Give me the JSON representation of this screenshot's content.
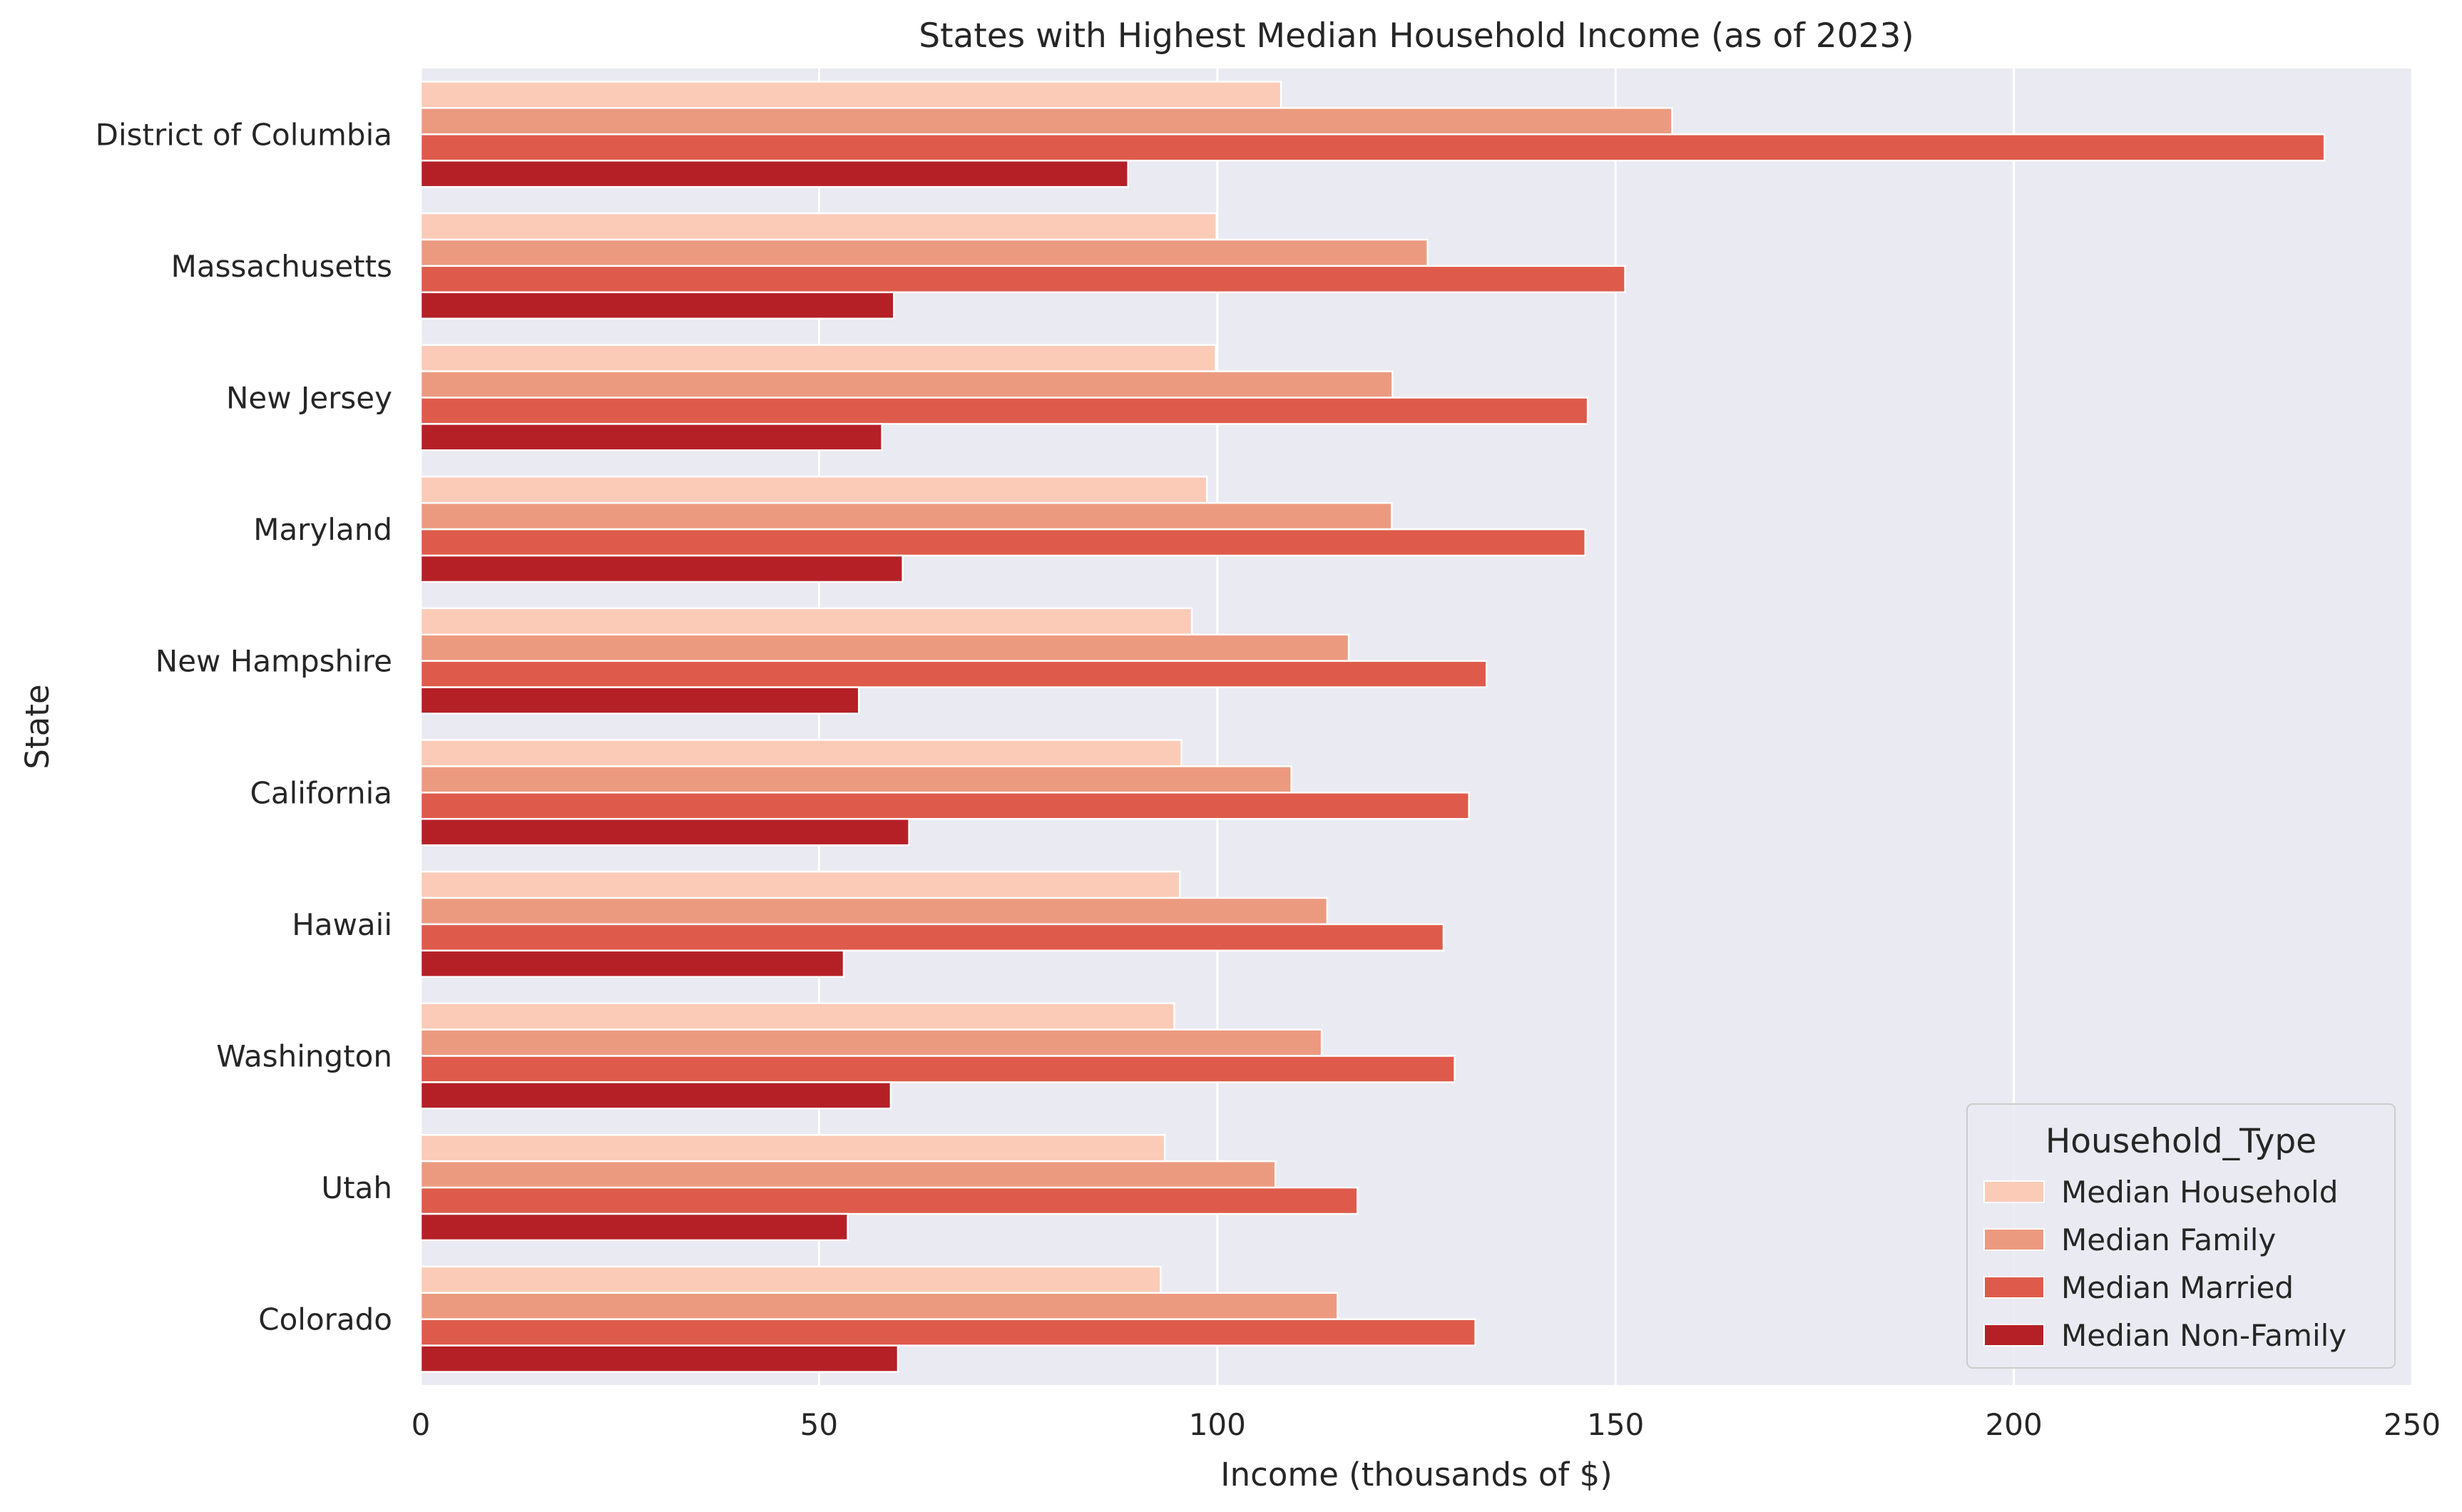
{
  "chart_data": {
    "type": "bar",
    "orientation": "horizontal",
    "title": "States with Highest Median Household Income (as of 2023)",
    "xlabel": "Income (thousands of $)",
    "ylabel": "State",
    "xlim": [
      0,
      250
    ],
    "xticks": [
      0,
      50,
      100,
      150,
      200,
      250
    ],
    "xtick_labels": [
      "0",
      "50",
      "100",
      "150",
      "200",
      "250"
    ],
    "grid": true,
    "legend": {
      "title": "Household_Type",
      "placement": "lower-right"
    },
    "categories": [
      "District of Columbia",
      "Massachusetts",
      "New Jersey",
      "Maryland",
      "New Hampshire",
      "California",
      "Hawaii",
      "Washington",
      "Utah",
      "Colorado"
    ],
    "series": [
      {
        "name": "Median Household",
        "color": "#fbcbb7",
        "values": [
          108,
          99.9,
          99.8,
          98.7,
          96.8,
          95.5,
          95.3,
          94.6,
          93.4,
          92.9
        ]
      },
      {
        "name": "Median Family",
        "color": "#ec9a7f",
        "values": [
          157.1,
          126.4,
          122,
          121.9,
          116.5,
          109.3,
          113.8,
          113.1,
          107.3,
          115.1
        ]
      },
      {
        "name": "Median Married",
        "color": "#de5b4b",
        "values": [
          239,
          151.2,
          146.5,
          146.2,
          133.8,
          131.6,
          128.4,
          129.8,
          117.6,
          132.4
        ]
      },
      {
        "name": "Median Non-Family",
        "color": "#b52027",
        "values": [
          88.8,
          59.4,
          57.9,
          60.5,
          55,
          61.3,
          53.1,
          59,
          53.6,
          59.9
        ]
      }
    ]
  }
}
